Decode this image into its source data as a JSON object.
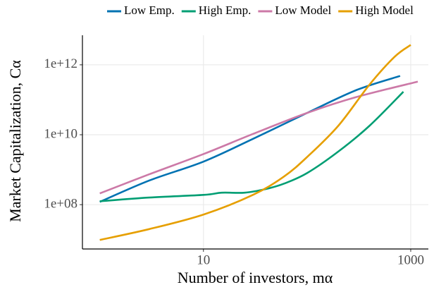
{
  "chart_data": {
    "type": "line",
    "x_label": "Number of investors, mα",
    "y_label": "Market Capitalization, Cα",
    "log_x": true,
    "log_y": true,
    "grid": true,
    "xlim": [
      0.68,
      1480
    ],
    "ylim": [
      5400000,
      7000000000000
    ],
    "xticks": [
      10,
      1000
    ],
    "yticks": [
      {
        "value": 100000000,
        "label": "1e+08"
      },
      {
        "value": 10000000000,
        "label": "1e+10"
      },
      {
        "value": 1000000000000,
        "label": "1e+12"
      }
    ],
    "legend": "top",
    "series": [
      {
        "name": "Low Emp.",
        "color": "#0072b2",
        "x": [
          1,
          3,
          10,
          30,
          100,
          300,
          790
        ],
        "values": [
          120000000,
          490000000,
          1700000000,
          7600000000,
          42000000000,
          190000000000,
          480000000000
        ]
      },
      {
        "name": "High Emp.",
        "color": "#009e73",
        "x": [
          1,
          3,
          10,
          15,
          25,
          40,
          60,
          100,
          200,
          400,
          850
        ],
        "values": [
          125000000,
          160000000,
          190000000,
          220000000,
          220000000,
          280000000,
          400000000,
          800000000,
          3300000000,
          18000000000,
          170000000000
        ]
      },
      {
        "name": "Low Model",
        "color": "#cc79a7",
        "x": [
          1,
          3,
          10,
          30,
          100,
          300,
          1170
        ],
        "values": [
          210000000,
          740000000,
          2800000000,
          10500000000,
          42000000000,
          120000000000,
          330000000000
        ]
      },
      {
        "name": "High Model",
        "color": "#e69f00",
        "x": [
          1,
          3,
          10,
          30,
          60,
          100,
          200,
          400,
          700,
          1000
        ],
        "values": [
          9800000,
          20000000,
          52000000,
          190000000,
          640000000,
          2300000000,
          18000000000,
          270000000000,
          1700000000000,
          3700000000000
        ]
      }
    ]
  }
}
